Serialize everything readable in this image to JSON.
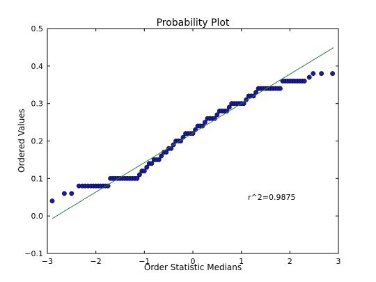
{
  "chart_data": {
    "type": "scatter",
    "title": "Probability Plot",
    "xlabel": "Order Statistic Medians",
    "ylabel": "Ordered Values",
    "xlim": [
      -3,
      3
    ],
    "ylim": [
      -0.1,
      0.5
    ],
    "xticks": [
      -3,
      -2,
      -1,
      0,
      1,
      2,
      3
    ],
    "yticks": [
      -0.1,
      0.0,
      0.1,
      0.2,
      0.3,
      0.4,
      0.5
    ],
    "xtick_labels": [
      "−3",
      "−2",
      "−1",
      "0",
      "1",
      "2",
      "3"
    ],
    "ytick_labels": [
      "−0.1",
      "0.0",
      "0.1",
      "0.2",
      "0.3",
      "0.4",
      "0.5"
    ],
    "grid": false,
    "annotation": "r^2=0.9875",
    "fit_line": {
      "x": [
        -2.9,
        2.9
      ],
      "y": [
        -0.007,
        0.449
      ],
      "color": "#2e7d32"
    },
    "marker_color": "#1a1aa0",
    "series": [
      {
        "points": [
          [
            -2.9,
            0.04
          ],
          [
            -2.65,
            0.06
          ],
          [
            -2.5,
            0.06
          ],
          [
            -2.35,
            0.08
          ],
          [
            -2.28,
            0.08
          ],
          [
            -2.22,
            0.08
          ],
          [
            -2.16,
            0.08
          ],
          [
            -2.1,
            0.08
          ],
          [
            -2.05,
            0.08
          ],
          [
            -2.0,
            0.08
          ],
          [
            -1.95,
            0.08
          ],
          [
            -1.9,
            0.08
          ],
          [
            -1.85,
            0.08
          ],
          [
            -1.8,
            0.08
          ],
          [
            -1.75,
            0.08
          ],
          [
            -1.7,
            0.1
          ],
          [
            -1.65,
            0.1
          ],
          [
            -1.6,
            0.1
          ],
          [
            -1.55,
            0.1
          ],
          [
            -1.5,
            0.1
          ],
          [
            -1.45,
            0.1
          ],
          [
            -1.4,
            0.1
          ],
          [
            -1.35,
            0.1
          ],
          [
            -1.3,
            0.1
          ],
          [
            -1.25,
            0.1
          ],
          [
            -1.2,
            0.1
          ],
          [
            -1.15,
            0.1
          ],
          [
            -1.1,
            0.11
          ],
          [
            -1.05,
            0.12
          ],
          [
            -1.0,
            0.12
          ],
          [
            -0.95,
            0.13
          ],
          [
            -0.9,
            0.14
          ],
          [
            -0.85,
            0.14
          ],
          [
            -0.8,
            0.15
          ],
          [
            -0.75,
            0.15
          ],
          [
            -0.7,
            0.15
          ],
          [
            -0.65,
            0.16
          ],
          [
            -0.6,
            0.17
          ],
          [
            -0.55,
            0.17
          ],
          [
            -0.5,
            0.18
          ],
          [
            -0.45,
            0.18
          ],
          [
            -0.4,
            0.19
          ],
          [
            -0.35,
            0.2
          ],
          [
            -0.3,
            0.2
          ],
          [
            -0.25,
            0.2
          ],
          [
            -0.2,
            0.21
          ],
          [
            -0.15,
            0.22
          ],
          [
            -0.1,
            0.22
          ],
          [
            -0.05,
            0.22
          ],
          [
            0.0,
            0.22
          ],
          [
            0.05,
            0.23
          ],
          [
            0.1,
            0.24
          ],
          [
            0.15,
            0.24
          ],
          [
            0.2,
            0.24
          ],
          [
            0.25,
            0.25
          ],
          [
            0.3,
            0.26
          ],
          [
            0.35,
            0.26
          ],
          [
            0.4,
            0.26
          ],
          [
            0.45,
            0.26
          ],
          [
            0.5,
            0.27
          ],
          [
            0.55,
            0.28
          ],
          [
            0.6,
            0.28
          ],
          [
            0.65,
            0.28
          ],
          [
            0.7,
            0.28
          ],
          [
            0.75,
            0.29
          ],
          [
            0.8,
            0.3
          ],
          [
            0.85,
            0.3
          ],
          [
            0.9,
            0.3
          ],
          [
            0.95,
            0.3
          ],
          [
            1.0,
            0.3
          ],
          [
            1.05,
            0.3
          ],
          [
            1.1,
            0.31
          ],
          [
            1.15,
            0.32
          ],
          [
            1.2,
            0.32
          ],
          [
            1.25,
            0.32
          ],
          [
            1.3,
            0.33
          ],
          [
            1.35,
            0.34
          ],
          [
            1.4,
            0.34
          ],
          [
            1.45,
            0.34
          ],
          [
            1.5,
            0.34
          ],
          [
            1.55,
            0.34
          ],
          [
            1.6,
            0.34
          ],
          [
            1.65,
            0.34
          ],
          [
            1.7,
            0.34
          ],
          [
            1.75,
            0.34
          ],
          [
            1.8,
            0.34
          ],
          [
            1.85,
            0.36
          ],
          [
            1.9,
            0.36
          ],
          [
            1.95,
            0.36
          ],
          [
            2.0,
            0.36
          ],
          [
            2.05,
            0.36
          ],
          [
            2.1,
            0.36
          ],
          [
            2.15,
            0.36
          ],
          [
            2.2,
            0.36
          ],
          [
            2.25,
            0.36
          ],
          [
            2.3,
            0.36
          ],
          [
            2.4,
            0.37
          ],
          [
            2.48,
            0.38
          ],
          [
            2.65,
            0.38
          ],
          [
            2.88,
            0.38
          ]
        ]
      }
    ]
  }
}
